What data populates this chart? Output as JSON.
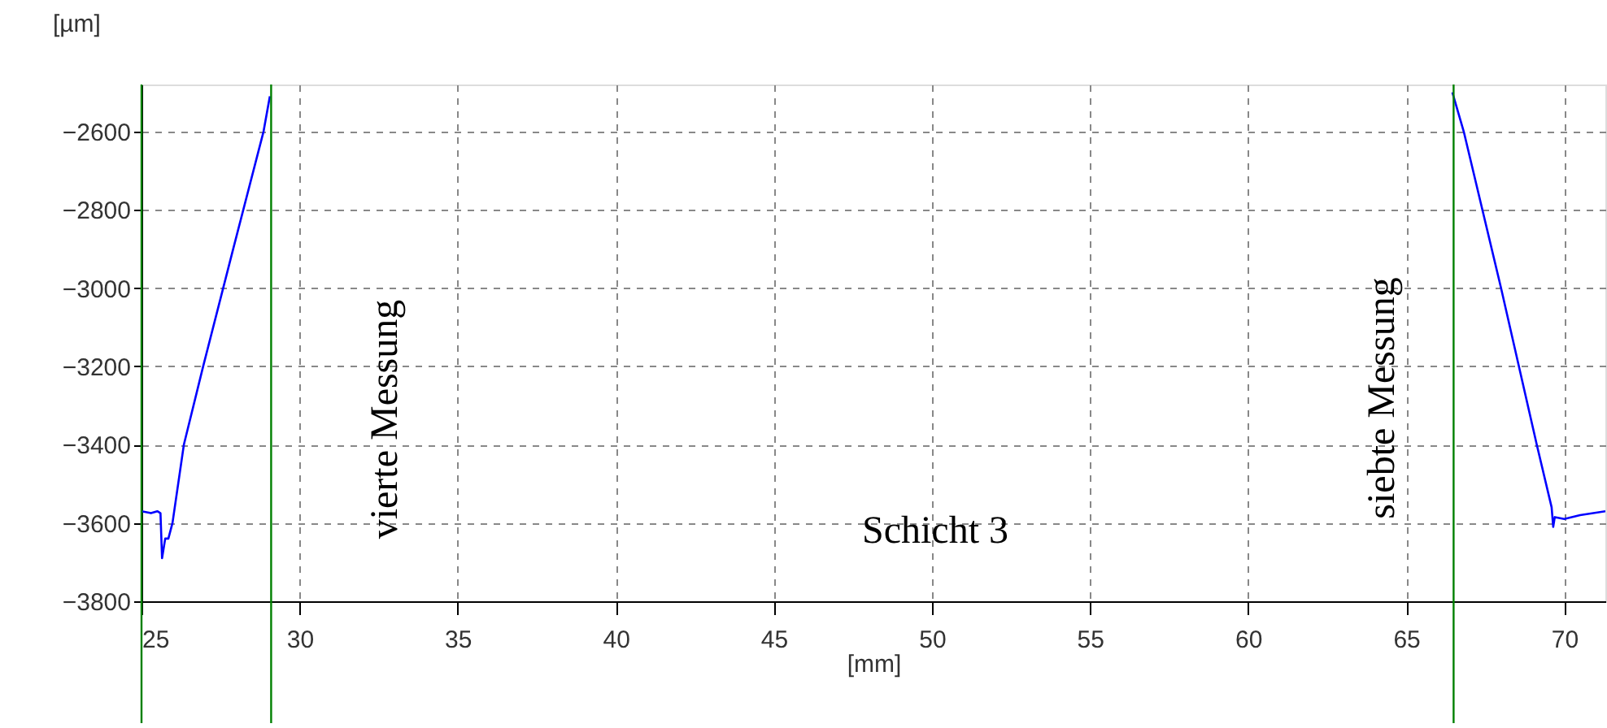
{
  "chart_data": {
    "type": "line",
    "xlabel": "[mm]",
    "ylabel": "[µm]",
    "xlim": [
      25,
      71.3
    ],
    "xticks": [
      25,
      30,
      35,
      40,
      45,
      50,
      55,
      60,
      65,
      70
    ],
    "ylim": [
      -3800,
      -2480
    ],
    "yticks": [
      -3800,
      -3600,
      -3400,
      -3200,
      -3000,
      -2800,
      -2600
    ],
    "grid": true,
    "line_style": "solid",
    "marker": "none",
    "legend": false,
    "series": [
      {
        "color": "#0000ff",
        "x": [
          25.0,
          25.3,
          25.5,
          25.6,
          25.65,
          25.75,
          25.85,
          25.98,
          26.34,
          26.95,
          27.9,
          28.86,
          29.06
        ],
        "values": [
          -3570,
          -3575,
          -3570,
          -3575,
          -3690,
          -3640,
          -3640,
          -3600,
          -3400,
          -3200,
          -2900,
          -2600,
          -2510
        ]
      },
      {
        "color": "#0000ff",
        "x": [
          66.46,
          66.82,
          68.0,
          69.13,
          69.6,
          69.65,
          69.7,
          70.0,
          70.5,
          71.3
        ],
        "values": [
          -2500,
          -2600,
          -3000,
          -3400,
          -3560,
          -3610,
          -3585,
          -3590,
          -3580,
          -3570
        ]
      }
    ],
    "ref_lines": [
      {
        "axis": "x",
        "value": 25.0,
        "color": "#008000"
      },
      {
        "axis": "x",
        "value": 29.1,
        "color": "#008000"
      },
      {
        "axis": "x",
        "value": 66.5,
        "color": "#008000"
      }
    ],
    "annotations": [
      "vierte Messung",
      "siebte Messung",
      "Schicht 3"
    ]
  }
}
